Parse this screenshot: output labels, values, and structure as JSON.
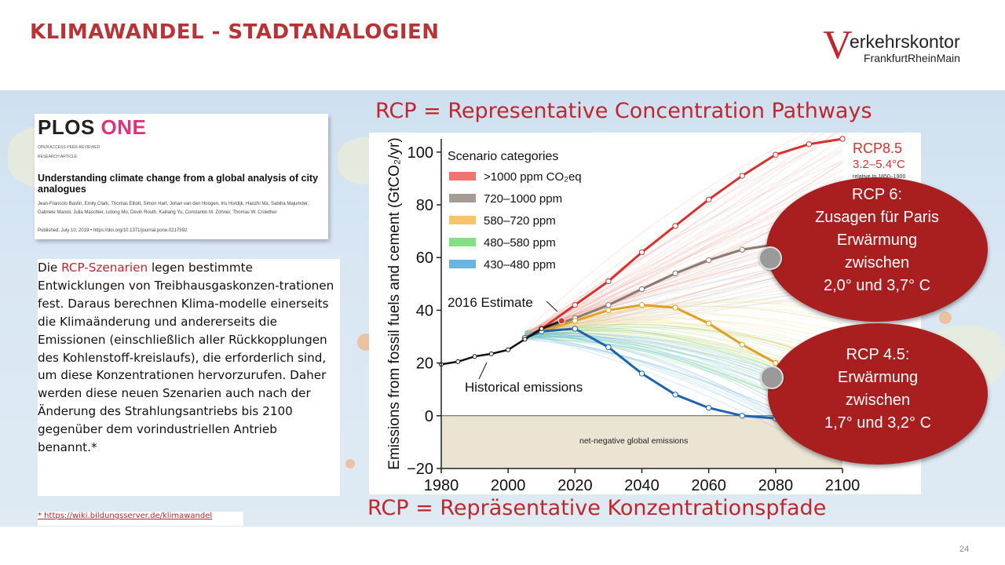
{
  "slide": {
    "title": "KLIMAWANDEL - STADTANALOGIEN",
    "page_number": "24"
  },
  "logo": {
    "letter": "V",
    "line1": "erkehrskontor",
    "line2": "FrankfurtRheinMain"
  },
  "paper": {
    "journal_a": "PLOS",
    "journal_b": "ONE",
    "meta": "OPEN ACCESS    PEER-REVIEWED",
    "type": "RESEARCH ARTICLE",
    "title": "Understanding climate change from a global analysis of city analogues",
    "authors": "Jean-Francois Bastin, Emily Clark, Thomas Elliott, Simon Hart, Johan van den Hoogen, Iris Hordijk, Haozhi Ma, Sabiha Majumder, Gabriele Manoli, Julia Maschler, Lidong Mo, Devin Routh, Kailiang Yu, Constantin M. Zohner, Thomas W. Crowther",
    "published": "Published: July 10, 2019  •  https://doi.org/10.1371/journal.pone.0217592"
  },
  "body": {
    "intro": "Die ",
    "highlight": "RCP-Szenarien",
    "text": " legen bestimmte Entwicklungen von Treibhausgaskonzen-trationen fest. Daraus berechnen Klima-modelle einerseits die Klimaänderung und andererseits die Emissionen (einschließlich aller Rückkopplungen des Kohlenstoff-kreislaufs), die erforderlich sind, um diese Konzentrationen hervorzurufen. Daher werden diese neuen Szenarien auch nach der Änderung des Strahlungsantriebs bis 2100 gegenüber dem vorindustriellen Antrieb benannt.*"
  },
  "footnote": "* https://wiki.bildungsserver.de/klimawandel",
  "chart_header": "RCP = Representative Concentration Pathways",
  "chart_footer": "RCP = Repräsentative Konzentrationspfade",
  "bubbles": {
    "rcp6": [
      "RCP 6:",
      "Zusagen für Paris",
      "Erwärmung",
      "zwischen",
      "2,0° und 3,7° C"
    ],
    "rcp45": [
      "RCP 4.5:",
      "Erwärmung",
      "zwischen",
      "1,7° und 3,2° C"
    ]
  },
  "chart_data": {
    "type": "line",
    "ylabel": "Emissions from fossil fuels and cement (GtCO₂/yr)",
    "xlim": [
      1980,
      2100
    ],
    "ylim": [
      -20,
      105
    ],
    "x_ticks": [
      1980,
      2000,
      2020,
      2040,
      2060,
      2080,
      2100
    ],
    "y_ticks": [
      -20,
      0,
      20,
      40,
      60,
      80,
      100
    ],
    "legend_title": "Scenario categories",
    "legend_position": "top-left",
    "legend": [
      {
        "label": ">1000 ppm CO₂eq",
        "color": "#e8453c"
      },
      {
        "label": "720–1000 ppm",
        "color": "#8a7a72"
      },
      {
        "label": "580–720 ppm",
        "color": "#f0b23a"
      },
      {
        "label": "480–580 ppm",
        "color": "#5cd65c"
      },
      {
        "label": "430–480 ppm",
        "color": "#3a9ad6"
      }
    ],
    "annotations": {
      "rcp85": "RCP8.5",
      "rcp85_range": "3.2–5.4°C",
      "rcp85_ref": "relative to 1850–1900",
      "estimate": "2016 Estimate",
      "historical": "Historical emissions",
      "negative": "net-negative global emissions"
    },
    "historical": {
      "x": [
        1980,
        1985,
        1990,
        1995,
        2000,
        2005,
        2010,
        2016
      ],
      "y": [
        19.5,
        20.5,
        22.5,
        23.5,
        25,
        29,
        33,
        36
      ]
    },
    "series": [
      {
        "name": "RCP8.5",
        "color": "#d8302c",
        "x": [
          2005,
          2010,
          2020,
          2030,
          2040,
          2050,
          2060,
          2070,
          2080,
          2090,
          2100
        ],
        "y": [
          29.5,
          33,
          42,
          51,
          62,
          72,
          82,
          91,
          99,
          103,
          105
        ]
      },
      {
        "color": "#8a7a72",
        "x": [
          2005,
          2010,
          2020,
          2030,
          2040,
          2050,
          2060,
          2070,
          2080
        ],
        "y": [
          29.5,
          32.5,
          37,
          42,
          48,
          54,
          59,
          63,
          65
        ]
      },
      {
        "color": "#e0a020",
        "x": [
          2005,
          2010,
          2020,
          2030,
          2040,
          2050,
          2060,
          2070,
          2080
        ],
        "y": [
          29.5,
          32,
          36,
          40,
          42,
          41,
          35,
          27,
          20
        ]
      },
      {
        "color": "#1f64b0",
        "x": [
          2005,
          2010,
          2020,
          2030,
          2040,
          2050,
          2060,
          2070,
          2080,
          2090
        ],
        "y": [
          29.5,
          32,
          33,
          26,
          16,
          8,
          3,
          0,
          -1,
          -1
        ]
      }
    ],
    "colors": {
      "axis": "#222222",
      "negative_fill": "#ece4d3"
    }
  }
}
